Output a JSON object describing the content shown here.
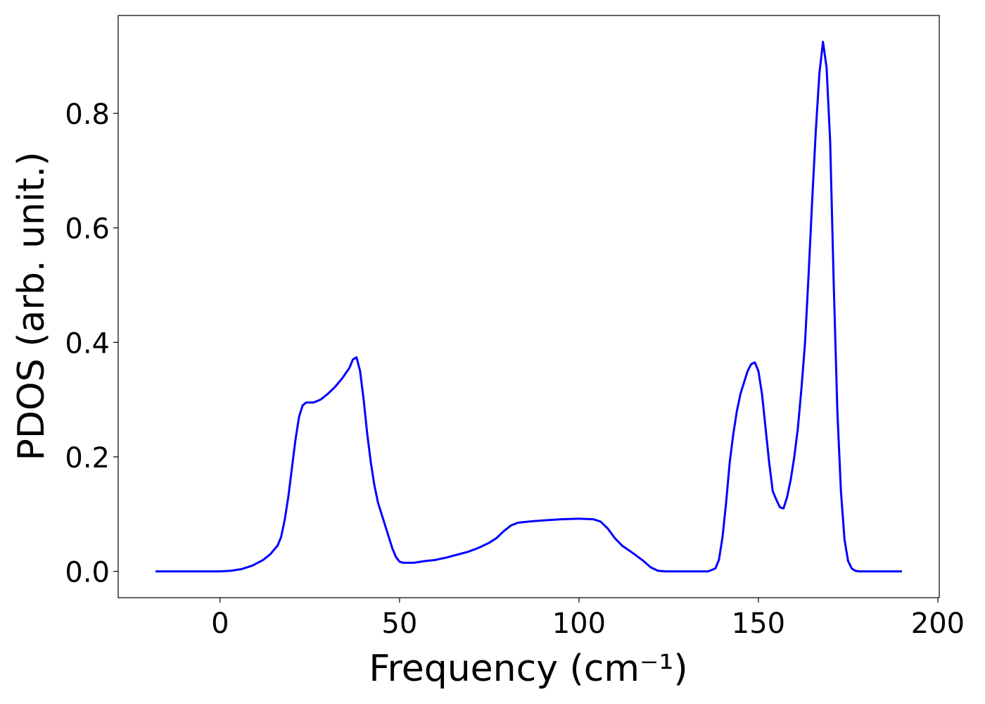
{
  "chart_data": {
    "type": "line",
    "xlabel": "Frequency (cm⁻¹)",
    "ylabel": "PDOS (arb. unit.)",
    "xlim": [
      -28.4,
      200.4
    ],
    "ylim": [
      -0.046,
      0.971
    ],
    "xticks": [
      0,
      50,
      100,
      150,
      200
    ],
    "yticks": [
      {
        "value": 0,
        "label": "0.0"
      },
      0.2,
      0.4,
      0.6,
      0.8
    ],
    "series": [
      {
        "color": "#0000ff",
        "x": [
          -18,
          0,
          3,
          6,
          9,
          12,
          14,
          16,
          17,
          18,
          19,
          20,
          21,
          22,
          23,
          24,
          26,
          28,
          30,
          32,
          34,
          36,
          37,
          38,
          39,
          40,
          41,
          42,
          43,
          44,
          46,
          47,
          48,
          49,
          50,
          51,
          54,
          57,
          60,
          63,
          66,
          69,
          72,
          75,
          77,
          79,
          81,
          83,
          86,
          90,
          95,
          100,
          104,
          106,
          108,
          110,
          112,
          115,
          118,
          120,
          122,
          124,
          136,
          138,
          139,
          140,
          141,
          142,
          143,
          144,
          145,
          146,
          147,
          148,
          149,
          150,
          151,
          152,
          153,
          154,
          155,
          156,
          157,
          158,
          159,
          160,
          161,
          162,
          163,
          164,
          165,
          166,
          167,
          168,
          169,
          170,
          171,
          172,
          173,
          174,
          175,
          176,
          177,
          178,
          190
        ],
        "values": [
          0,
          0,
          0.001,
          0.004,
          0.01,
          0.02,
          0.03,
          0.045,
          0.06,
          0.09,
          0.13,
          0.18,
          0.23,
          0.27,
          0.29,
          0.295,
          0.295,
          0.3,
          0.31,
          0.322,
          0.337,
          0.355,
          0.37,
          0.374,
          0.35,
          0.3,
          0.24,
          0.19,
          0.15,
          0.12,
          0.08,
          0.06,
          0.04,
          0.025,
          0.017,
          0.015,
          0.015,
          0.018,
          0.02,
          0.024,
          0.029,
          0.034,
          0.041,
          0.05,
          0.058,
          0.07,
          0.08,
          0.085,
          0.087,
          0.089,
          0.091,
          0.092,
          0.091,
          0.087,
          0.075,
          0.058,
          0.045,
          0.032,
          0.018,
          0.007,
          0.001,
          0,
          0,
          0.005,
          0.02,
          0.06,
          0.12,
          0.19,
          0.24,
          0.28,
          0.31,
          0.33,
          0.35,
          0.362,
          0.365,
          0.35,
          0.31,
          0.25,
          0.19,
          0.14,
          0.125,
          0.112,
          0.11,
          0.13,
          0.16,
          0.2,
          0.25,
          0.32,
          0.4,
          0.52,
          0.65,
          0.77,
          0.87,
          0.925,
          0.88,
          0.75,
          0.5,
          0.28,
          0.14,
          0.055,
          0.018,
          0.005,
          0.001,
          0,
          0
        ]
      }
    ]
  }
}
